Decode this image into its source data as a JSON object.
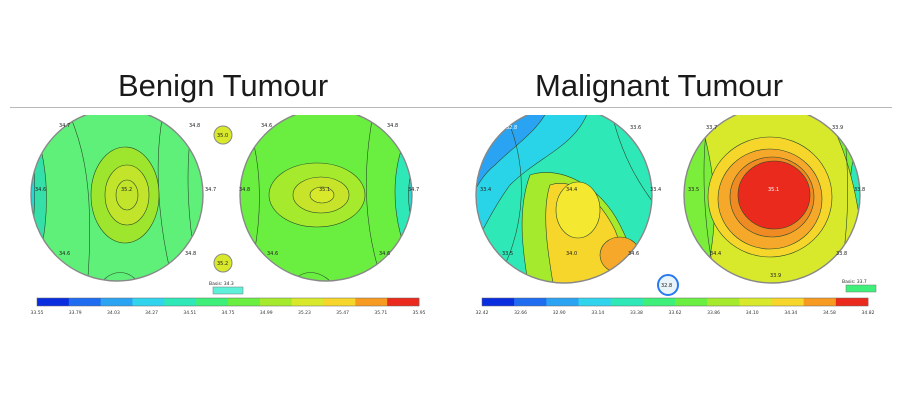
{
  "titles": {
    "benign": "Benign Tumour",
    "malignant": "Malignant Tumour"
  },
  "benign": {
    "palette": [
      "#0a2de0",
      "#1f6cf0",
      "#2aa3f2",
      "#30d4ec",
      "#2ee8b8",
      "#3ef07a",
      "#6aee40",
      "#a5ea2c",
      "#d8e82a",
      "#f6d62a",
      "#f69a22",
      "#ea2a1c"
    ],
    "colorbar_ticks": [
      "33.55",
      "33.79",
      "34.03",
      "34.27",
      "34.51",
      "34.75",
      "34.99",
      "35.23",
      "35.47",
      "35.71",
      "35.95"
    ],
    "left_points": [
      "34.7",
      "34.8",
      "34.6",
      "35.2",
      "34.7",
      "34.6",
      "34.8"
    ],
    "right_points": [
      "34.6",
      "34.8",
      "34.8",
      "35.1",
      "34.7",
      "34.6",
      "34.6"
    ],
    "center_points": [
      "35.0",
      "35.2"
    ],
    "legend_label": "Basis: 34.3"
  },
  "malignant": {
    "palette": [
      "#0a2de0",
      "#1f6cf0",
      "#2aa3f2",
      "#30d4ec",
      "#2ee8b8",
      "#3ef07a",
      "#6aee40",
      "#a5ea2c",
      "#d8e82a",
      "#f6d62a",
      "#f69a22",
      "#ea2a1c"
    ],
    "colorbar_ticks": [
      "32.42",
      "32.66",
      "32.90",
      "33.14",
      "33.38",
      "33.62",
      "33.86",
      "34.10",
      "34.34",
      "34.58",
      "34.82"
    ],
    "left_points": [
      "32.8",
      "33.6",
      "33.4",
      "34.4",
      "33.4",
      "33.5",
      "34.0",
      "34.6"
    ],
    "right_points": [
      "33.7",
      "33.9",
      "33.5",
      "35.1",
      "33.8",
      "34.4",
      "33.9",
      "33.8"
    ],
    "center_points": [
      "32.8"
    ],
    "legend_label": "Basis: 33.7"
  }
}
